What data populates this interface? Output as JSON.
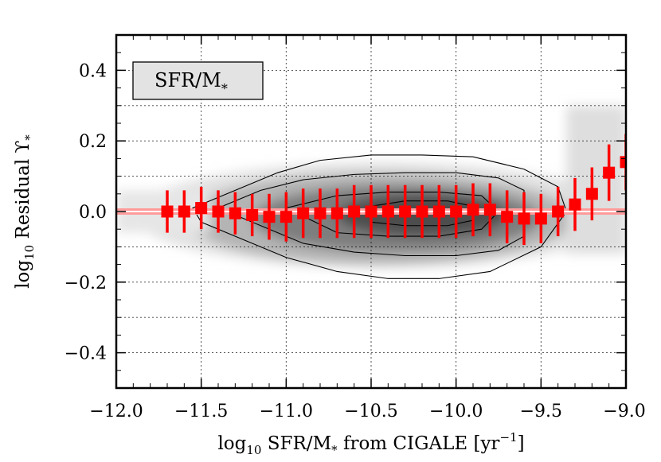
{
  "chart_data": {
    "type": "scatter",
    "title": "",
    "xlabel": "log10 SFR/M* from CIGALE [yr^-1]",
    "ylabel": "log10 Residual ϒ*",
    "xlabel_parts": {
      "pre": "log",
      "sub": "10",
      "mid": " SFR/M",
      "star": "*",
      "post": " from CIGALE [yr",
      "sup": "−1",
      "end": "]"
    },
    "ylabel_parts": {
      "pre": "log",
      "sub": "10",
      "mid": " Residual ϒ",
      "star": "*"
    },
    "legend": {
      "text": "SFR/M",
      "star": "*",
      "placement": "top-left"
    },
    "xlim": [
      -12.0,
      -9.0
    ],
    "ylim": [
      -0.5,
      0.5
    ],
    "x_ticks": [
      "−12.0",
      "−11.5",
      "−11.0",
      "−10.5",
      "−10.0",
      "−9.5",
      "−9.0"
    ],
    "x_tick_values": [
      -12.0,
      -11.5,
      -11.0,
      -10.5,
      -10.0,
      -9.5,
      -9.0
    ],
    "y_ticks": [
      "−0.4",
      "−0.2",
      "0.0",
      "0.2",
      "0.4"
    ],
    "y_tick_values": [
      -0.4,
      -0.2,
      0.0,
      0.2,
      0.4
    ],
    "grid": true,
    "reference_line": {
      "y": 0.0,
      "color": "#ff9a9a"
    },
    "series": [
      {
        "marker": "square",
        "color": "#ff0000",
        "x": [
          -11.7,
          -11.6,
          -11.5,
          -11.4,
          -11.3,
          -11.2,
          -11.1,
          -11.0,
          -10.9,
          -10.8,
          -10.7,
          -10.6,
          -10.5,
          -10.4,
          -10.3,
          -10.2,
          -10.1,
          -10.0,
          -9.9,
          -9.8,
          -9.7,
          -9.6,
          -9.5,
          -9.4,
          -9.3,
          -9.2,
          -9.1,
          -9.0
        ],
        "y": [
          0.0,
          0.0,
          0.01,
          0.0,
          -0.005,
          -0.01,
          -0.015,
          -0.015,
          -0.005,
          -0.005,
          -0.005,
          0.0,
          0.0,
          0.0,
          0.0,
          0.0,
          0.0,
          0.0,
          0.005,
          0.005,
          -0.015,
          -0.02,
          -0.02,
          0.0,
          0.02,
          0.05,
          0.11,
          0.14
        ],
        "yerr": [
          0.06,
          0.06,
          0.06,
          0.06,
          0.06,
          0.06,
          0.065,
          0.07,
          0.07,
          0.07,
          0.07,
          0.075,
          0.075,
          0.075,
          0.075,
          0.075,
          0.075,
          0.075,
          0.075,
          0.075,
          0.075,
          0.075,
          0.07,
          0.07,
          0.075,
          0.075,
          0.08,
          0.08
        ]
      }
    ],
    "density": {
      "colormap": "grayscale",
      "contour_color": "#000000",
      "contours": [
        {
          "x": [
            -11.55,
            -11.3,
            -11.05,
            -10.8,
            -10.5,
            -10.2,
            -9.9,
            -9.6,
            -9.4,
            -9.35,
            -9.5,
            -9.8,
            -10.1,
            -10.4,
            -10.7,
            -11.0,
            -11.3,
            -11.5,
            -11.55
          ],
          "y": [
            0.01,
            0.06,
            0.11,
            0.145,
            0.16,
            0.16,
            0.155,
            0.12,
            0.07,
            0.0,
            -0.1,
            -0.17,
            -0.19,
            -0.19,
            -0.17,
            -0.13,
            -0.07,
            -0.03,
            0.01
          ]
        },
        {
          "x": [
            -11.4,
            -11.15,
            -10.9,
            -10.6,
            -10.3,
            -10.0,
            -9.75,
            -9.6,
            -9.6,
            -9.75,
            -10.0,
            -10.3,
            -10.6,
            -10.9,
            -11.15,
            -11.4
          ],
          "y": [
            0.01,
            0.06,
            0.09,
            0.105,
            0.11,
            0.11,
            0.095,
            0.06,
            -0.07,
            -0.11,
            -0.125,
            -0.125,
            -0.115,
            -0.09,
            -0.04,
            0.01
          ]
        },
        {
          "x": [
            -11.0,
            -10.7,
            -10.4,
            -10.1,
            -9.85,
            -9.75,
            -9.85,
            -10.1,
            -10.4,
            -10.7,
            -11.0
          ],
          "y": [
            0.01,
            0.045,
            0.055,
            0.055,
            0.045,
            0.0,
            -0.05,
            -0.07,
            -0.07,
            -0.06,
            0.01
          ]
        },
        {
          "x": [
            -10.5,
            -10.3,
            -10.05,
            -9.9,
            -9.9,
            -10.05,
            -10.3,
            -10.5,
            -10.5
          ],
          "y": [
            0.015,
            0.03,
            0.03,
            0.015,
            -0.025,
            -0.04,
            -0.04,
            -0.03,
            0.015
          ]
        }
      ]
    }
  }
}
